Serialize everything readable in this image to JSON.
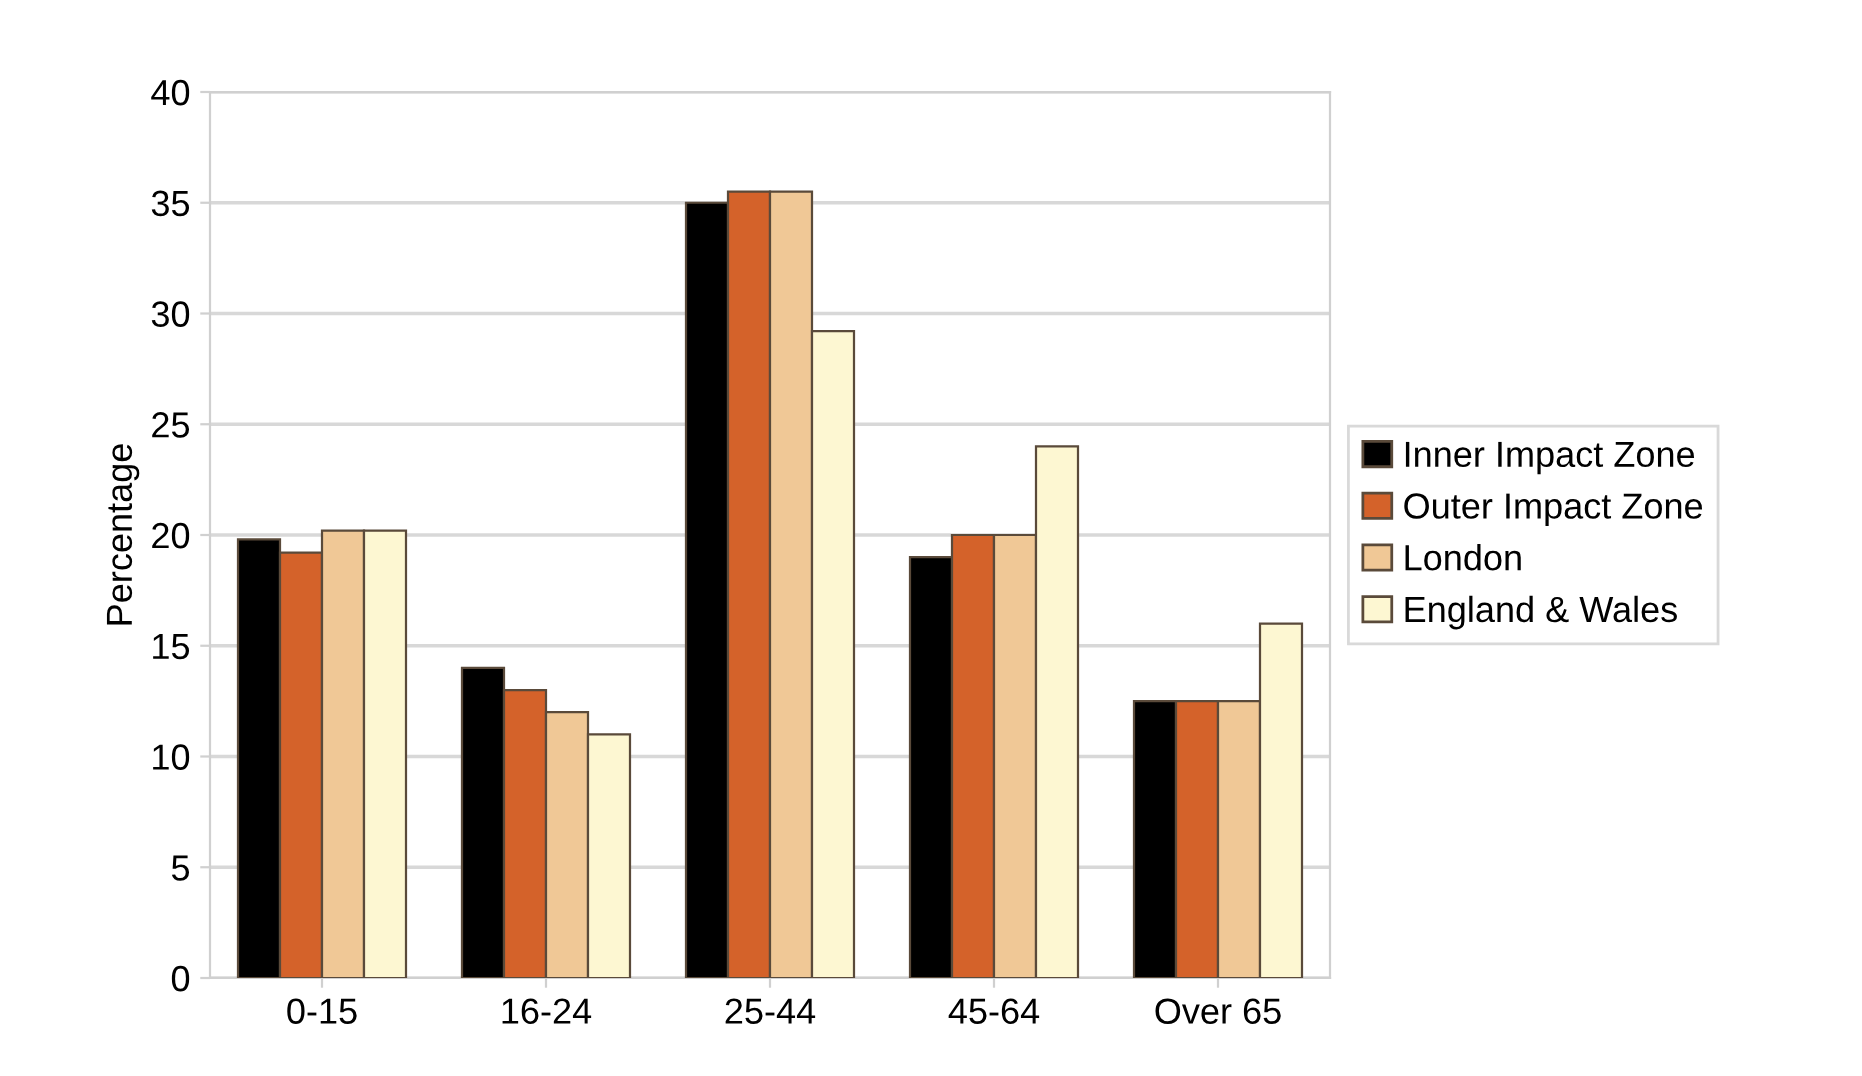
{
  "chart_data": {
    "type": "bar",
    "ylabel": "Percentage",
    "categories": [
      "0-15",
      "16-24",
      "25-44",
      "45-64",
      "Over 65"
    ],
    "series": [
      {
        "name": "Inner Impact Zone",
        "color": "#000000",
        "values": [
          19.8,
          14,
          35,
          19,
          12.5
        ]
      },
      {
        "name": "Outer Impact Zone",
        "color": "#d4622a",
        "values": [
          19.2,
          13,
          35.5,
          20,
          12.5
        ]
      },
      {
        "name": "London",
        "color": "#f0c896",
        "values": [
          20.2,
          12,
          35.5,
          20,
          12.5
        ]
      },
      {
        "name": "England & Wales",
        "color": "#fdf7d2",
        "values": [
          20.2,
          11,
          29.2,
          24,
          16
        ]
      }
    ],
    "ylim": [
      0,
      40
    ],
    "yticks": [
      0,
      5,
      10,
      15,
      20,
      25,
      30,
      35,
      40
    ],
    "grid": "y",
    "legend": "right"
  }
}
